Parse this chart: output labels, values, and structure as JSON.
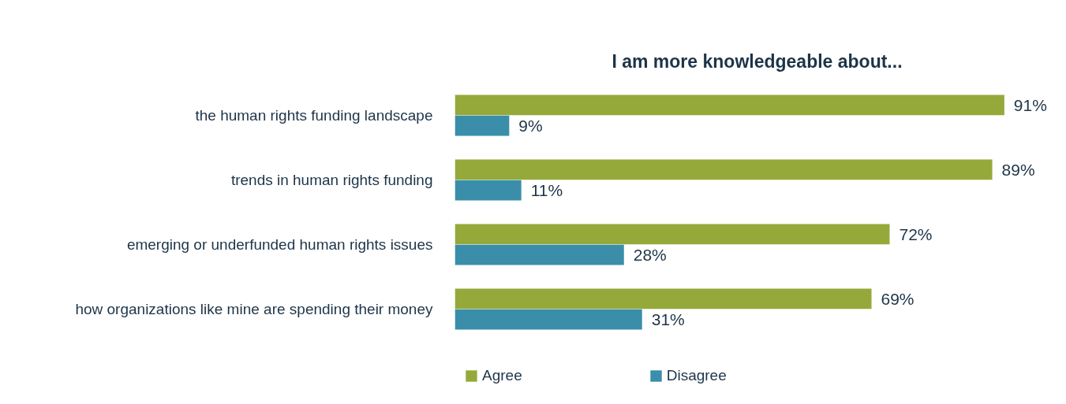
{
  "chart_data": {
    "type": "bar",
    "orientation": "horizontal",
    "title": "I am more knowledgeable about...",
    "categories": [
      "the human rights funding landscape",
      "trends in human rights funding",
      "emerging or underfunded human rights issues",
      "how organizations like mine are spending their money"
    ],
    "series": [
      {
        "name": "Agree",
        "color": "#95a93a",
        "values": [
          91,
          89,
          72,
          69
        ],
        "value_labels": [
          "91%",
          "89%",
          "72%",
          "69%"
        ]
      },
      {
        "name": "Disagree",
        "color": "#3a8ea9",
        "values": [
          9,
          11,
          28,
          31
        ],
        "value_labels": [
          "9%",
          "11%",
          "28%",
          "31%"
        ]
      }
    ],
    "data_labels": false,
    "tick_labels": "y",
    "legend": "bottom"
  }
}
